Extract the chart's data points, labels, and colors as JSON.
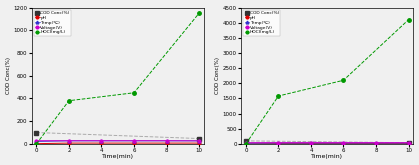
{
  "left": {
    "time": [
      0,
      2,
      4,
      6,
      8,
      10
    ],
    "COD": [
      100,
      null,
      null,
      null,
      null,
      47
    ],
    "pH": [
      2,
      7,
      7,
      7,
      7,
      7
    ],
    "Temp": [
      22,
      27,
      27,
      27,
      27,
      27
    ],
    "Voltage": [
      28,
      28,
      28,
      28,
      28,
      27
    ],
    "HOCl": [
      0,
      380,
      null,
      450,
      null,
      1150
    ],
    "ylim": [
      0,
      1200
    ],
    "yticks": [
      0,
      200,
      400,
      600,
      800,
      1000,
      1200
    ],
    "xticks": [
      0,
      2,
      4,
      6,
      8,
      10
    ]
  },
  "right": {
    "time": [
      0,
      2,
      4,
      6,
      8,
      10
    ],
    "COD": [
      100,
      null,
      null,
      null,
      null,
      38
    ],
    "pH": [
      2,
      8,
      8,
      8,
      8,
      8
    ],
    "Temp": [
      25,
      28,
      28,
      28,
      28,
      28
    ],
    "Voltage": [
      40,
      42,
      42,
      42,
      42,
      42
    ],
    "HOCl": [
      0,
      1580,
      null,
      2100,
      null,
      4100
    ],
    "ylim": [
      0,
      4500
    ],
    "yticks": [
      0,
      500,
      1000,
      1500,
      2000,
      2500,
      3000,
      3500,
      4000,
      4500
    ],
    "xticks": [
      0,
      2,
      4,
      6,
      8,
      10
    ]
  },
  "legend_labels": [
    "COD Conc(%)",
    "pH",
    "Temp(℃)",
    "Voltage(V)",
    "HOCl(mg/L)"
  ],
  "colors": {
    "COD": "#333333",
    "pH": "#dd0000",
    "Temp": "#3333cc",
    "Voltage": "#cc00cc",
    "HOCl": "#009900"
  },
  "xlabel": "Time(min)",
  "ylabel_left": "COD Conc(%)",
  "bg_color": "#f0f0f0",
  "fig_width": 4.19,
  "fig_height": 1.65,
  "dpi": 100
}
